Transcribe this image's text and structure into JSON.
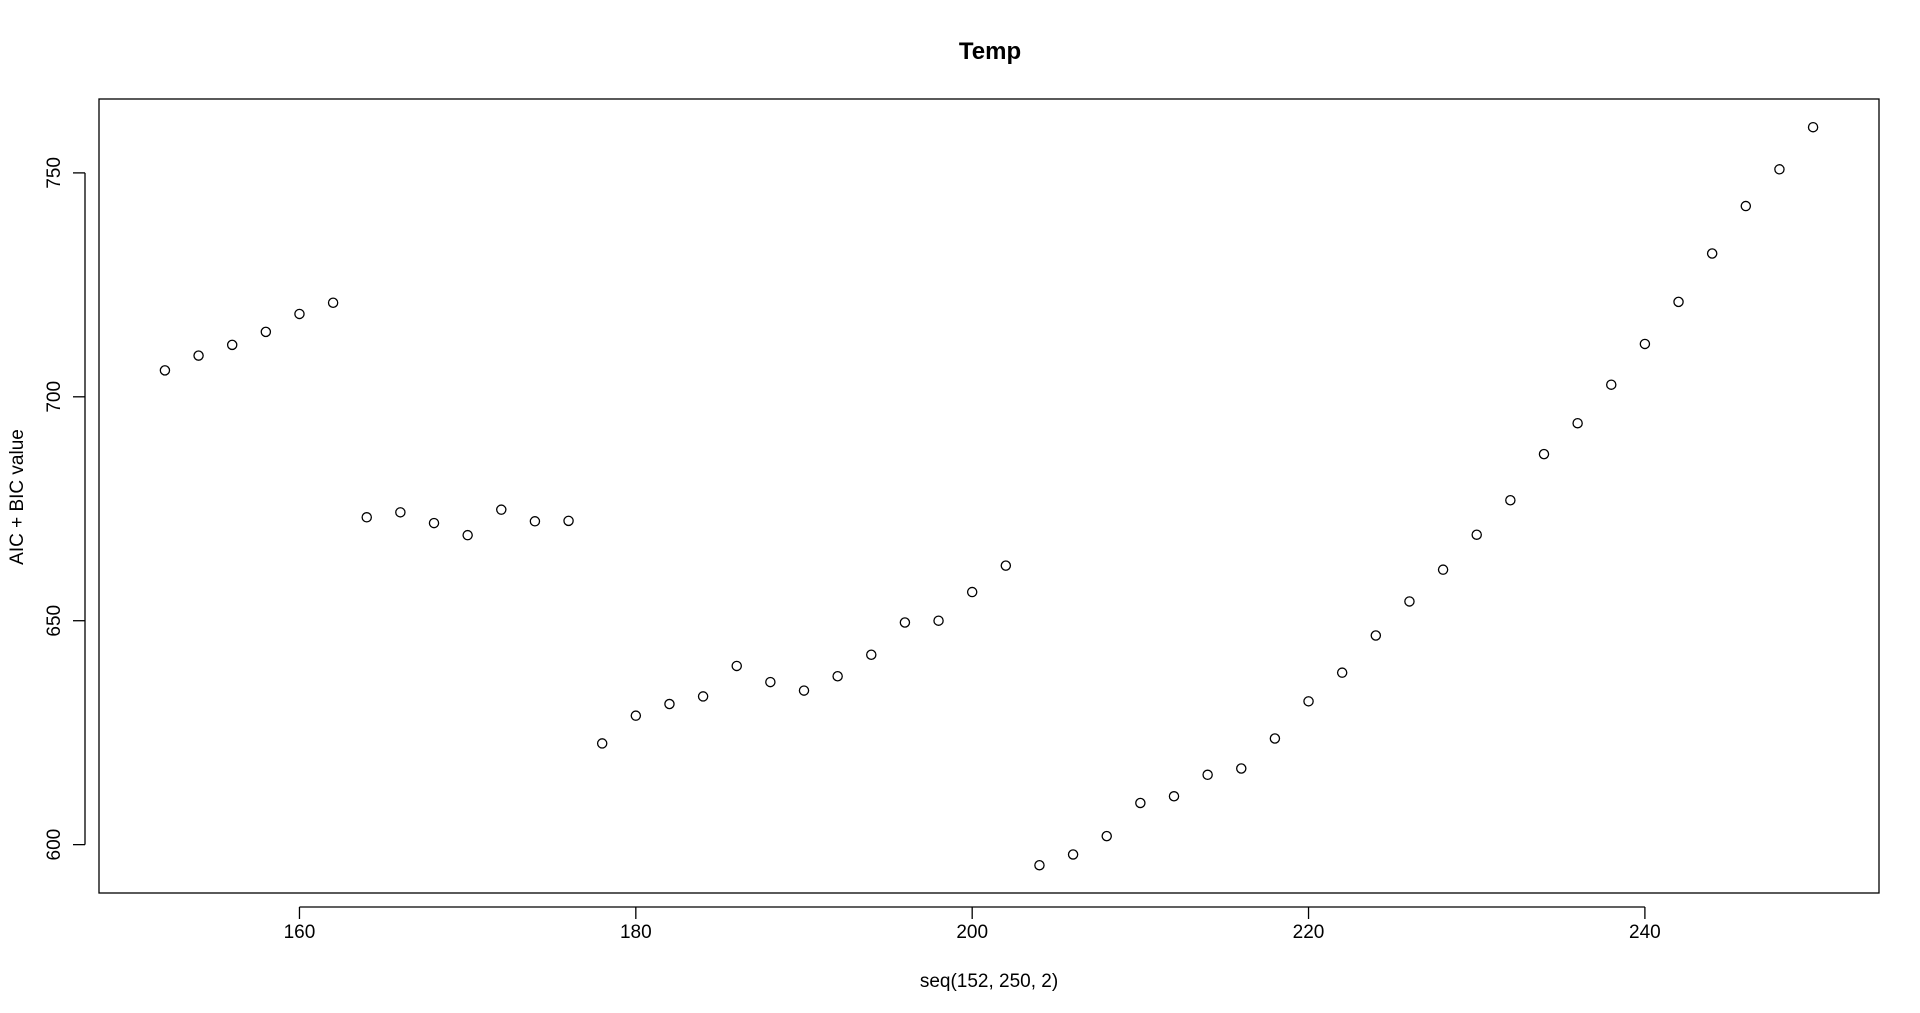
{
  "chart_data": {
    "type": "scatter",
    "title": "Temp",
    "xlabel": "seq(152, 250, 2)",
    "ylabel": "AIC + BIC value",
    "xlim": [
      148.08,
      253.92
    ],
    "ylim": [
      589.2,
      766.5
    ],
    "xticks": [
      160,
      180,
      200,
      220,
      240
    ],
    "yticks": [
      600,
      650,
      700,
      750
    ],
    "xtick_labels": [
      "160",
      "180",
      "200",
      "220",
      "240"
    ],
    "ytick_labels": [
      "600",
      "650",
      "700",
      "750"
    ],
    "grid": false,
    "legend": "none",
    "point_style": "open-circle",
    "point_color": "#000000",
    "series": [
      {
        "x": [
          152,
          154,
          156,
          158,
          160,
          162,
          164,
          166,
          168,
          170,
          172,
          174,
          176,
          178,
          180,
          182,
          184,
          186,
          188,
          190,
          192,
          194,
          196,
          198,
          200,
          202,
          204,
          206,
          208,
          210,
          212,
          214,
          216,
          218,
          220,
          222,
          224,
          226,
          228,
          230,
          232,
          234,
          236,
          238,
          240,
          242,
          244,
          246,
          248,
          250
        ],
        "values": [
          705.9,
          709.2,
          711.6,
          714.5,
          718.5,
          721,
          673.1,
          674.2,
          671.8,
          669.1,
          674.8,
          672.2,
          672.3,
          622.6,
          628.8,
          631.4,
          633.1,
          639.9,
          636.3,
          634.4,
          637.6,
          642.4,
          649.6,
          650,
          656.4,
          662.3,
          595.4,
          597.8,
          601.9,
          609.3,
          610.8,
          615.6,
          617,
          623.7,
          632,
          638.4,
          646.7,
          654.3,
          661.4,
          669.2,
          676.9,
          687.2,
          694.1,
          702.7,
          711.8,
          721.2,
          732,
          742.6,
          750.8,
          760.2
        ]
      }
    ]
  }
}
